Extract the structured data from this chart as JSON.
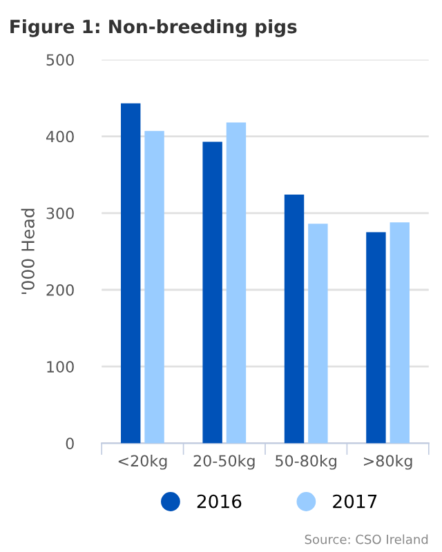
{
  "chart_data": {
    "type": "bar",
    "title": "Figure 1: Non-breeding pigs",
    "ylabel": "'000 Head",
    "categories": [
      "<20kg",
      "20-50kg",
      "50-80kg",
      ">80kg"
    ],
    "series": [
      {
        "name": "2016",
        "color": "#0052b8",
        "values": [
          443,
          393,
          324,
          275
        ]
      },
      {
        "name": "2017",
        "color": "#99ccff",
        "values": [
          407,
          418,
          286,
          288
        ]
      }
    ],
    "ylim": [
      0,
      500
    ],
    "yticks": [
      0,
      100,
      200,
      300,
      400,
      500
    ],
    "grid": "y",
    "legend": "bottom",
    "annotations": [
      "Source: CSO Ireland"
    ]
  }
}
